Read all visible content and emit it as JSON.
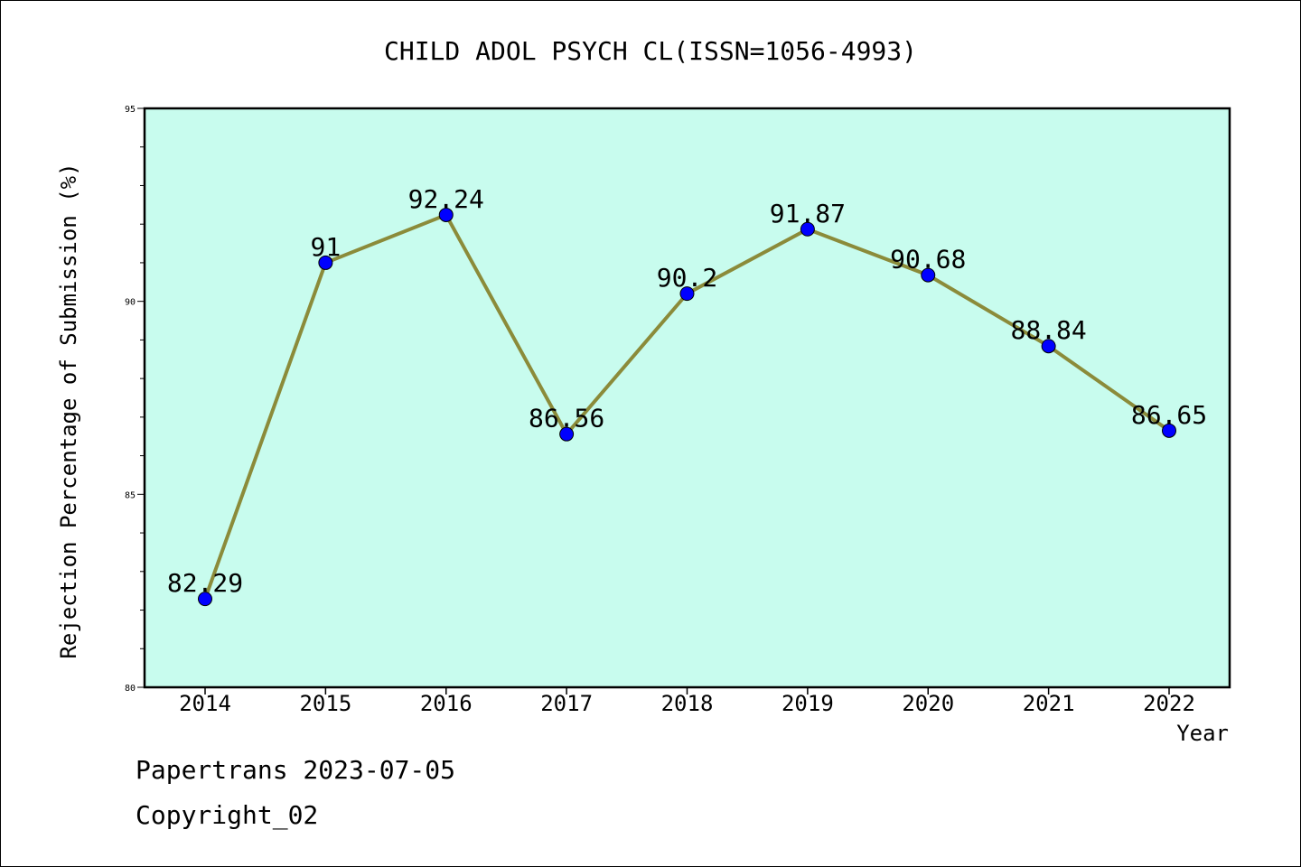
{
  "chart_data": {
    "type": "line",
    "title": "CHILD ADOL PSYCH CL(ISSN=1056-4993)",
    "xlabel": "Year",
    "ylabel": "Rejection Percentage of Submission (%)",
    "categories": [
      "2014",
      "2015",
      "2016",
      "2017",
      "2018",
      "2019",
      "2020",
      "2021",
      "2022"
    ],
    "values": [
      82.29,
      91,
      92.24,
      86.56,
      90.2,
      91.87,
      90.68,
      88.84,
      86.65
    ],
    "data_labels": [
      "82.29",
      "91",
      "92.24",
      "86.56",
      "90.2",
      "91.87",
      "90.68",
      "88.84",
      "86.65"
    ],
    "ylim": [
      80,
      95
    ],
    "yticks": [
      80,
      85,
      90,
      95
    ],
    "ytick_labels": [
      "80",
      "85",
      "90",
      "95"
    ],
    "grid": false,
    "colors": {
      "plot_background": "#c8fcee",
      "line": "#8b8b3a",
      "marker": "#0000ff"
    }
  },
  "footer": {
    "line1": "Papertrans 2023-07-05",
    "line2": "Copyright_02"
  }
}
